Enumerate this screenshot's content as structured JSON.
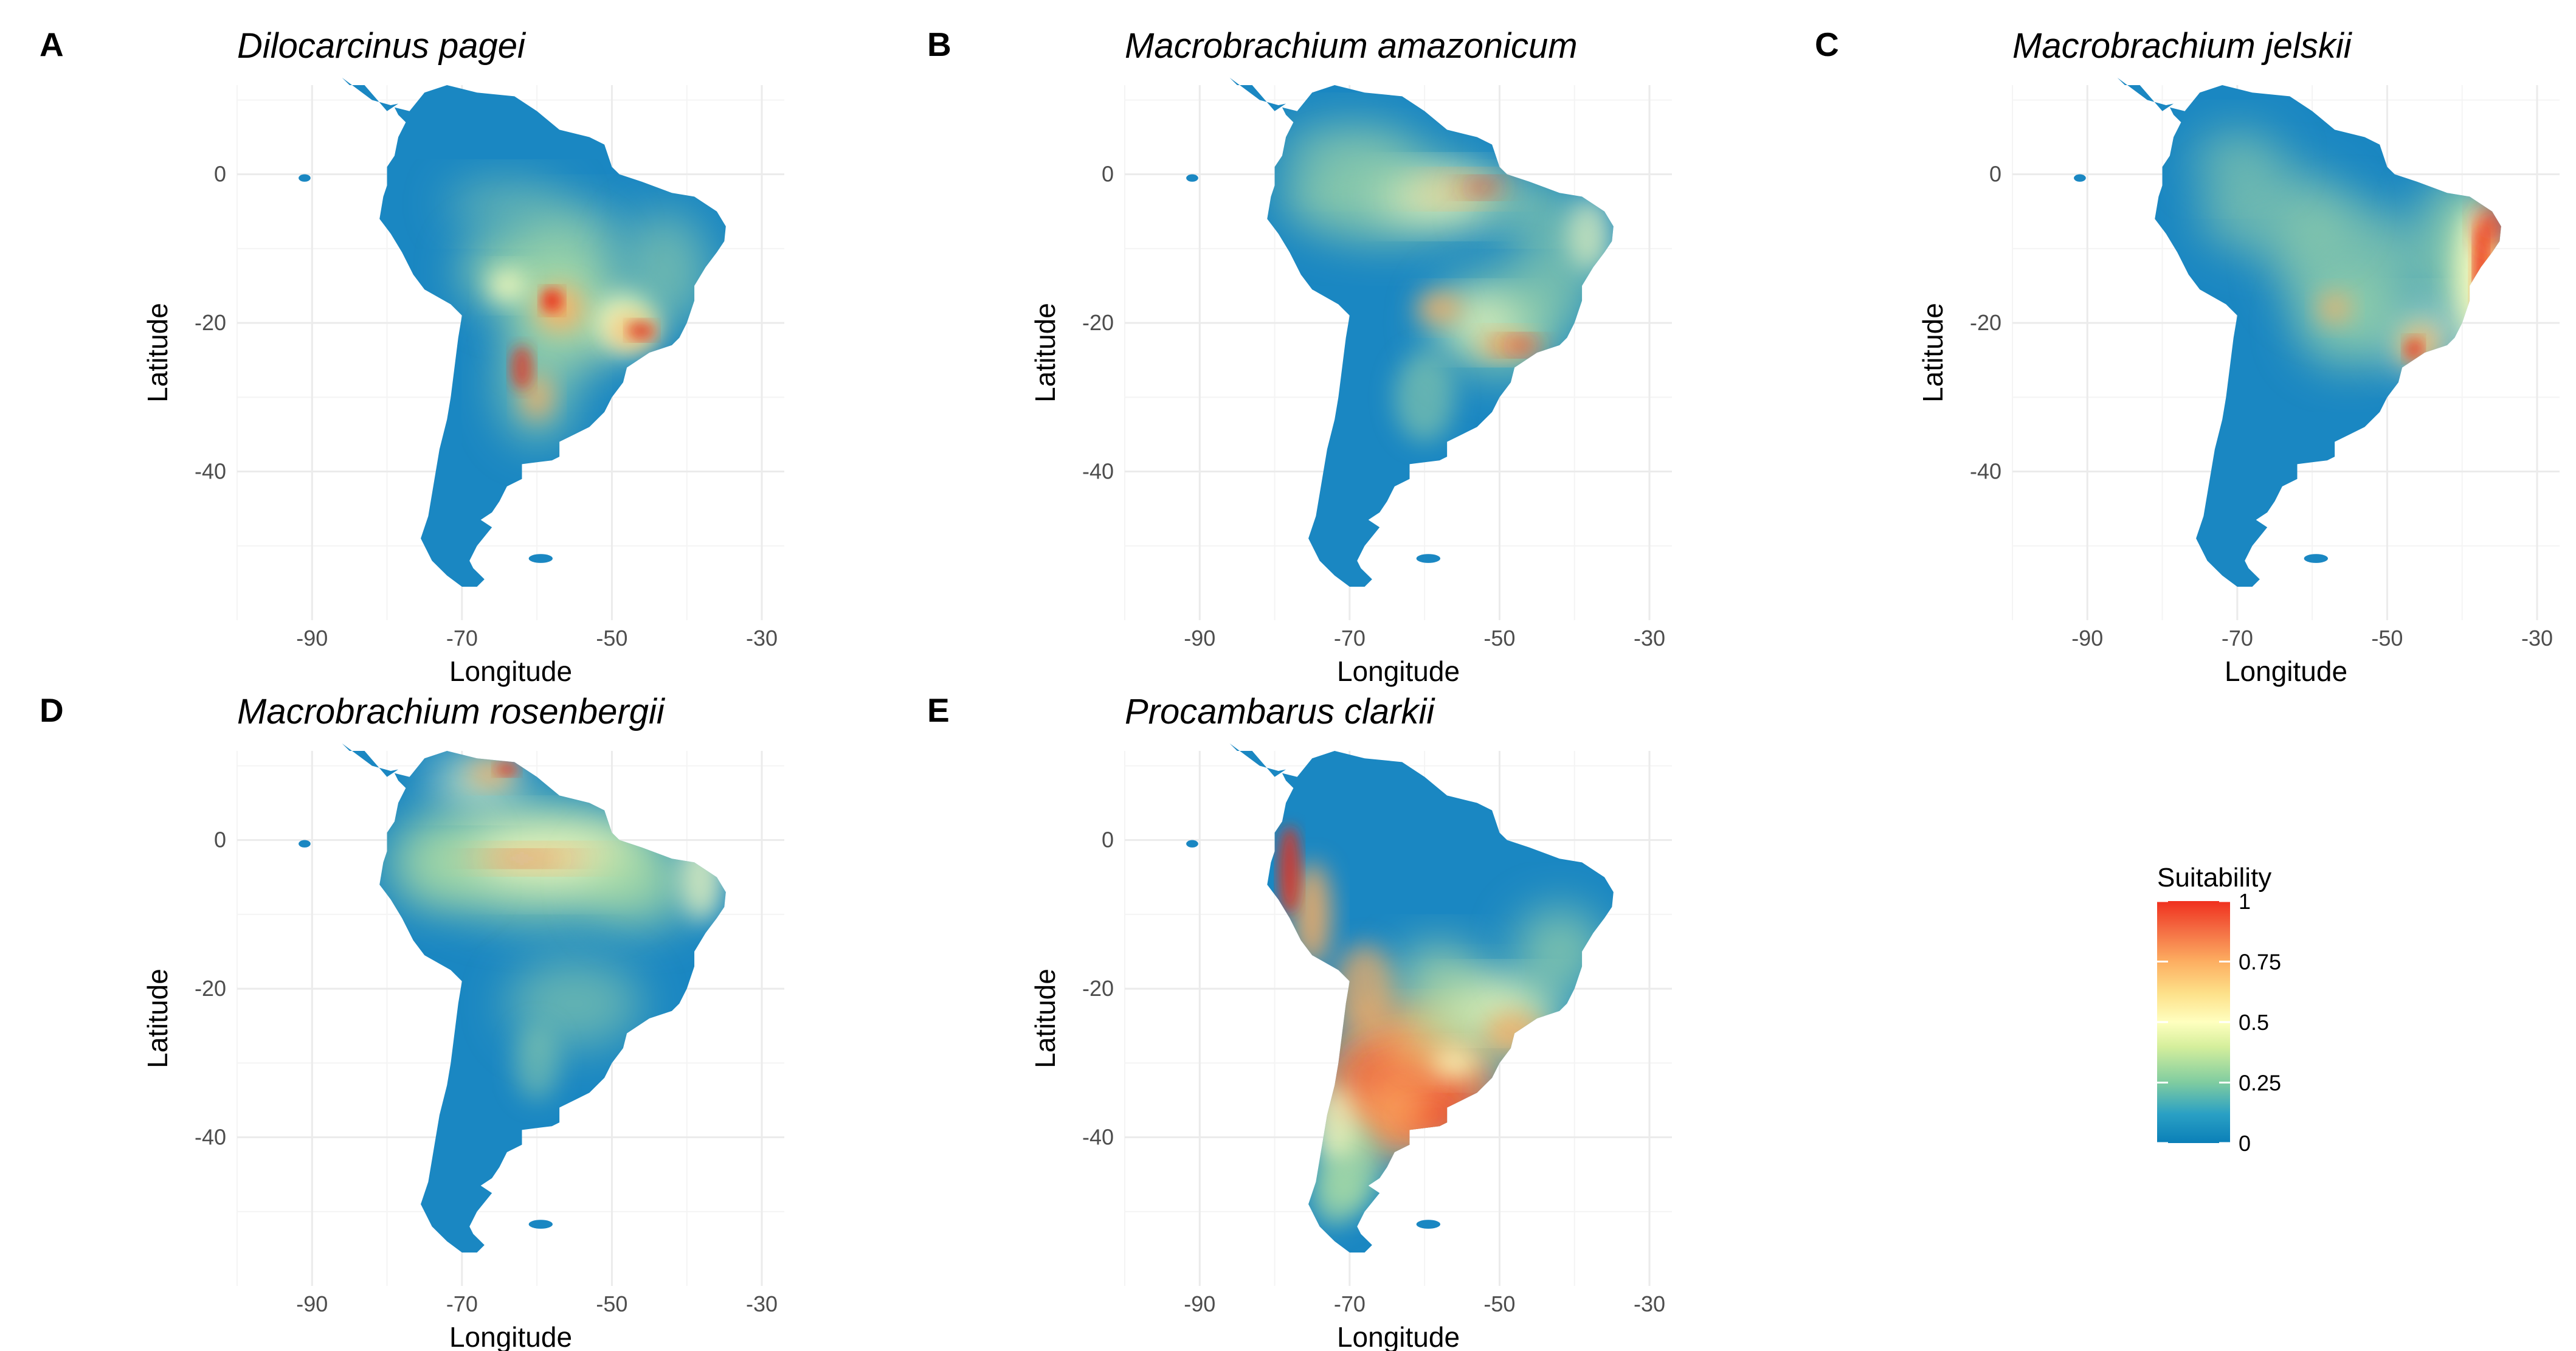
{
  "figure": {
    "panels": [
      {
        "id": "A",
        "letter": "A",
        "species": "Dilocarcinus pagei",
        "hotspots": "sparse-central"
      },
      {
        "id": "B",
        "letter": "B",
        "species": "Macrobrachium amazonicum",
        "hotspots": "amazon-parana"
      },
      {
        "id": "C",
        "letter": "C",
        "species": "Macrobrachium jelskii",
        "hotspots": "east-coast"
      },
      {
        "id": "D",
        "letter": "D",
        "species": "Macrobrachium rosenbergii",
        "hotspots": "amazon-north"
      },
      {
        "id": "E",
        "letter": "E",
        "species": "Procambarus clarkii",
        "hotspots": "south-temperate"
      }
    ],
    "axes": {
      "xlabel": "Longitude",
      "ylabel": "Latitude",
      "xticks": [
        "-90",
        "-70",
        "-50",
        "-30"
      ],
      "yticks": [
        "0",
        "-20",
        "-40"
      ],
      "xlim": [
        -100,
        -27
      ],
      "ylim": [
        -60,
        12
      ]
    },
    "legend": {
      "title": "Suitability",
      "ticks": [
        "1",
        "0.75",
        "0.5",
        "0.25",
        "0"
      ],
      "colors": [
        "#0571b0",
        "#1a9ac8",
        "#66c2a5",
        "#abdda4",
        "#e6f598",
        "#ffffbf",
        "#fee08b",
        "#fdae61",
        "#f46d43",
        "#d7191c",
        "#ee2a1e"
      ]
    }
  }
}
